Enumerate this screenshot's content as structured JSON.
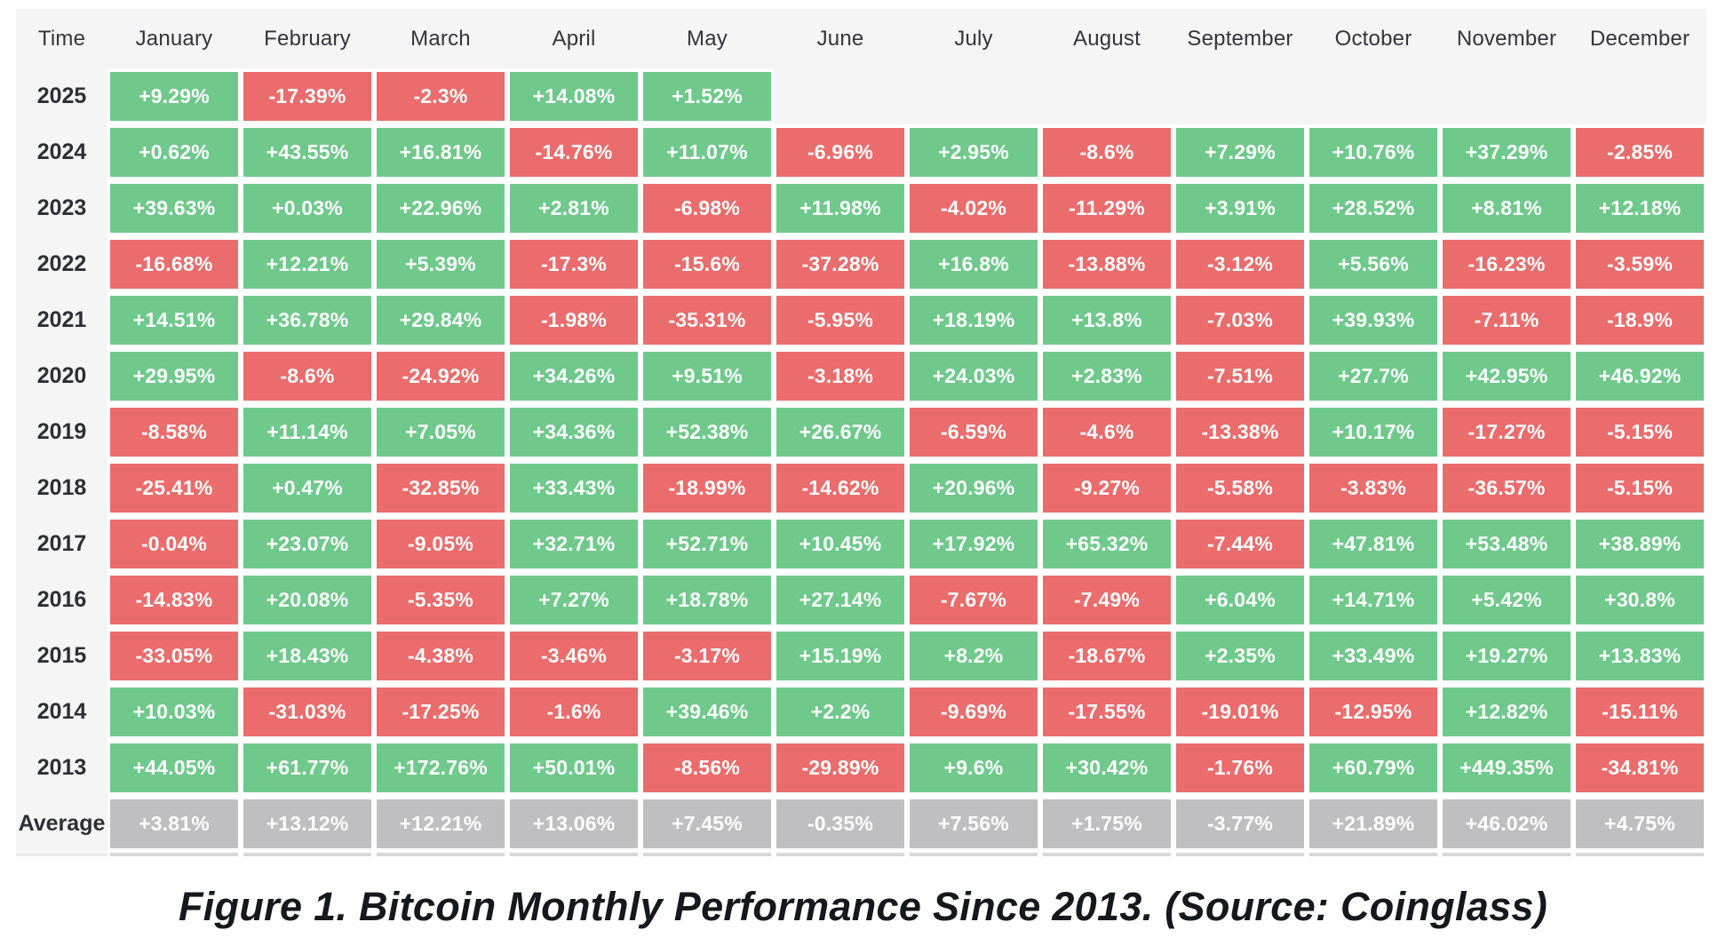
{
  "caption": "Figure 1. Bitcoin Monthly Performance Since 2013. (Source: Coinglass)",
  "colors": {
    "positive": "#6fc98b",
    "negative": "#ea6c6c",
    "average": "#bfbfc2",
    "table_background": "#f5f5f6",
    "cell_text": "#ffffff",
    "label_text": "#2e2e36"
  },
  "table": {
    "columns": [
      "Time",
      "January",
      "February",
      "March",
      "April",
      "May",
      "June",
      "July",
      "August",
      "September",
      "October",
      "November",
      "December"
    ],
    "rows": [
      {
        "label": "2025",
        "average": false,
        "values": [
          "+9.29%",
          "-17.39%",
          "-2.3%",
          "+14.08%",
          "+1.52%",
          "",
          "",
          "",
          "",
          "",
          "",
          ""
        ]
      },
      {
        "label": "2024",
        "average": false,
        "values": [
          "+0.62%",
          "+43.55%",
          "+16.81%",
          "-14.76%",
          "+11.07%",
          "-6.96%",
          "+2.95%",
          "-8.6%",
          "+7.29%",
          "+10.76%",
          "+37.29%",
          "-2.85%"
        ]
      },
      {
        "label": "2023",
        "average": false,
        "values": [
          "+39.63%",
          "+0.03%",
          "+22.96%",
          "+2.81%",
          "-6.98%",
          "+11.98%",
          "-4.02%",
          "-11.29%",
          "+3.91%",
          "+28.52%",
          "+8.81%",
          "+12.18%"
        ]
      },
      {
        "label": "2022",
        "average": false,
        "values": [
          "-16.68%",
          "+12.21%",
          "+5.39%",
          "-17.3%",
          "-15.6%",
          "-37.28%",
          "+16.8%",
          "-13.88%",
          "-3.12%",
          "+5.56%",
          "-16.23%",
          "-3.59%"
        ]
      },
      {
        "label": "2021",
        "average": false,
        "values": [
          "+14.51%",
          "+36.78%",
          "+29.84%",
          "-1.98%",
          "-35.31%",
          "-5.95%",
          "+18.19%",
          "+13.8%",
          "-7.03%",
          "+39.93%",
          "-7.11%",
          "-18.9%"
        ]
      },
      {
        "label": "2020",
        "average": false,
        "values": [
          "+29.95%",
          "-8.6%",
          "-24.92%",
          "+34.26%",
          "+9.51%",
          "-3.18%",
          "+24.03%",
          "+2.83%",
          "-7.51%",
          "+27.7%",
          "+42.95%",
          "+46.92%"
        ]
      },
      {
        "label": "2019",
        "average": false,
        "values": [
          "-8.58%",
          "+11.14%",
          "+7.05%",
          "+34.36%",
          "+52.38%",
          "+26.67%",
          "-6.59%",
          "-4.6%",
          "-13.38%",
          "+10.17%",
          "-17.27%",
          "-5.15%"
        ]
      },
      {
        "label": "2018",
        "average": false,
        "values": [
          "-25.41%",
          "+0.47%",
          "-32.85%",
          "+33.43%",
          "-18.99%",
          "-14.62%",
          "+20.96%",
          "-9.27%",
          "-5.58%",
          "-3.83%",
          "-36.57%",
          "-5.15%"
        ]
      },
      {
        "label": "2017",
        "average": false,
        "values": [
          "-0.04%",
          "+23.07%",
          "-9.05%",
          "+32.71%",
          "+52.71%",
          "+10.45%",
          "+17.92%",
          "+65.32%",
          "-7.44%",
          "+47.81%",
          "+53.48%",
          "+38.89%"
        ]
      },
      {
        "label": "2016",
        "average": false,
        "values": [
          "-14.83%",
          "+20.08%",
          "-5.35%",
          "+7.27%",
          "+18.78%",
          "+27.14%",
          "-7.67%",
          "-7.49%",
          "+6.04%",
          "+14.71%",
          "+5.42%",
          "+30.8%"
        ]
      },
      {
        "label": "2015",
        "average": false,
        "values": [
          "-33.05%",
          "+18.43%",
          "-4.38%",
          "-3.46%",
          "-3.17%",
          "+15.19%",
          "+8.2%",
          "-18.67%",
          "+2.35%",
          "+33.49%",
          "+19.27%",
          "+13.83%"
        ]
      },
      {
        "label": "2014",
        "average": false,
        "values": [
          "+10.03%",
          "-31.03%",
          "-17.25%",
          "-1.6%",
          "+39.46%",
          "+2.2%",
          "-9.69%",
          "-17.55%",
          "-19.01%",
          "-12.95%",
          "+12.82%",
          "-15.11%"
        ]
      },
      {
        "label": "2013",
        "average": false,
        "values": [
          "+44.05%",
          "+61.77%",
          "+172.76%",
          "+50.01%",
          "-8.56%",
          "-29.89%",
          "+9.6%",
          "+30.42%",
          "-1.76%",
          "+60.79%",
          "+449.35%",
          "-34.81%"
        ]
      },
      {
        "label": "Average",
        "average": true,
        "values": [
          "+3.81%",
          "+13.12%",
          "+12.21%",
          "+13.06%",
          "+7.45%",
          "-0.35%",
          "+7.56%",
          "+1.75%",
          "-3.77%",
          "+21.89%",
          "+46.02%",
          "+4.75%"
        ]
      }
    ]
  },
  "chart_data": {
    "type": "heatmap",
    "title": "Figure 1. Bitcoin Monthly Performance Since 2013. (Source: Coinglass)",
    "unit": "%",
    "x_categories": [
      "January",
      "February",
      "March",
      "April",
      "May",
      "June",
      "July",
      "August",
      "September",
      "October",
      "November",
      "December"
    ],
    "y_categories": [
      "2025",
      "2024",
      "2023",
      "2022",
      "2021",
      "2020",
      "2019",
      "2018",
      "2017",
      "2016",
      "2015",
      "2014",
      "2013",
      "Average"
    ],
    "color_coding": {
      "positive": "green",
      "negative": "red",
      "average_row": "gray"
    },
    "series": [
      {
        "name": "2025",
        "values": [
          9.29,
          -17.39,
          -2.3,
          14.08,
          1.52,
          null,
          null,
          null,
          null,
          null,
          null,
          null
        ]
      },
      {
        "name": "2024",
        "values": [
          0.62,
          43.55,
          16.81,
          -14.76,
          11.07,
          -6.96,
          2.95,
          -8.6,
          7.29,
          10.76,
          37.29,
          -2.85
        ]
      },
      {
        "name": "2023",
        "values": [
          39.63,
          0.03,
          22.96,
          2.81,
          -6.98,
          11.98,
          -4.02,
          -11.29,
          3.91,
          28.52,
          8.81,
          12.18
        ]
      },
      {
        "name": "2022",
        "values": [
          -16.68,
          12.21,
          5.39,
          -17.3,
          -15.6,
          -37.28,
          16.8,
          -13.88,
          -3.12,
          5.56,
          -16.23,
          -3.59
        ]
      },
      {
        "name": "2021",
        "values": [
          14.51,
          36.78,
          29.84,
          -1.98,
          -35.31,
          -5.95,
          18.19,
          13.8,
          -7.03,
          39.93,
          -7.11,
          -18.9
        ]
      },
      {
        "name": "2020",
        "values": [
          29.95,
          -8.6,
          -24.92,
          34.26,
          9.51,
          -3.18,
          24.03,
          2.83,
          -7.51,
          27.7,
          42.95,
          46.92
        ]
      },
      {
        "name": "2019",
        "values": [
          -8.58,
          11.14,
          7.05,
          34.36,
          52.38,
          26.67,
          -6.59,
          -4.6,
          -13.38,
          10.17,
          -17.27,
          -5.15
        ]
      },
      {
        "name": "2018",
        "values": [
          -25.41,
          0.47,
          -32.85,
          33.43,
          -18.99,
          -14.62,
          20.96,
          -9.27,
          -5.58,
          -3.83,
          -36.57,
          -5.15
        ]
      },
      {
        "name": "2017",
        "values": [
          -0.04,
          23.07,
          -9.05,
          32.71,
          52.71,
          10.45,
          17.92,
          65.32,
          -7.44,
          47.81,
          53.48,
          38.89
        ]
      },
      {
        "name": "2016",
        "values": [
          -14.83,
          20.08,
          -5.35,
          7.27,
          18.78,
          27.14,
          -7.67,
          -7.49,
          6.04,
          14.71,
          5.42,
          30.8
        ]
      },
      {
        "name": "2015",
        "values": [
          -33.05,
          18.43,
          -4.38,
          -3.46,
          -3.17,
          15.19,
          8.2,
          -18.67,
          2.35,
          33.49,
          19.27,
          13.83
        ]
      },
      {
        "name": "2014",
        "values": [
          10.03,
          -31.03,
          -17.25,
          -1.6,
          39.46,
          2.2,
          -9.69,
          -17.55,
          -19.01,
          -12.95,
          12.82,
          -15.11
        ]
      },
      {
        "name": "2013",
        "values": [
          44.05,
          61.77,
          172.76,
          50.01,
          -8.56,
          -29.89,
          9.6,
          30.42,
          -1.76,
          60.79,
          449.35,
          -34.81
        ]
      },
      {
        "name": "Average",
        "values": [
          3.81,
          13.12,
          12.21,
          13.06,
          7.45,
          -0.35,
          7.56,
          1.75,
          -3.77,
          21.89,
          46.02,
          4.75
        ]
      }
    ]
  }
}
